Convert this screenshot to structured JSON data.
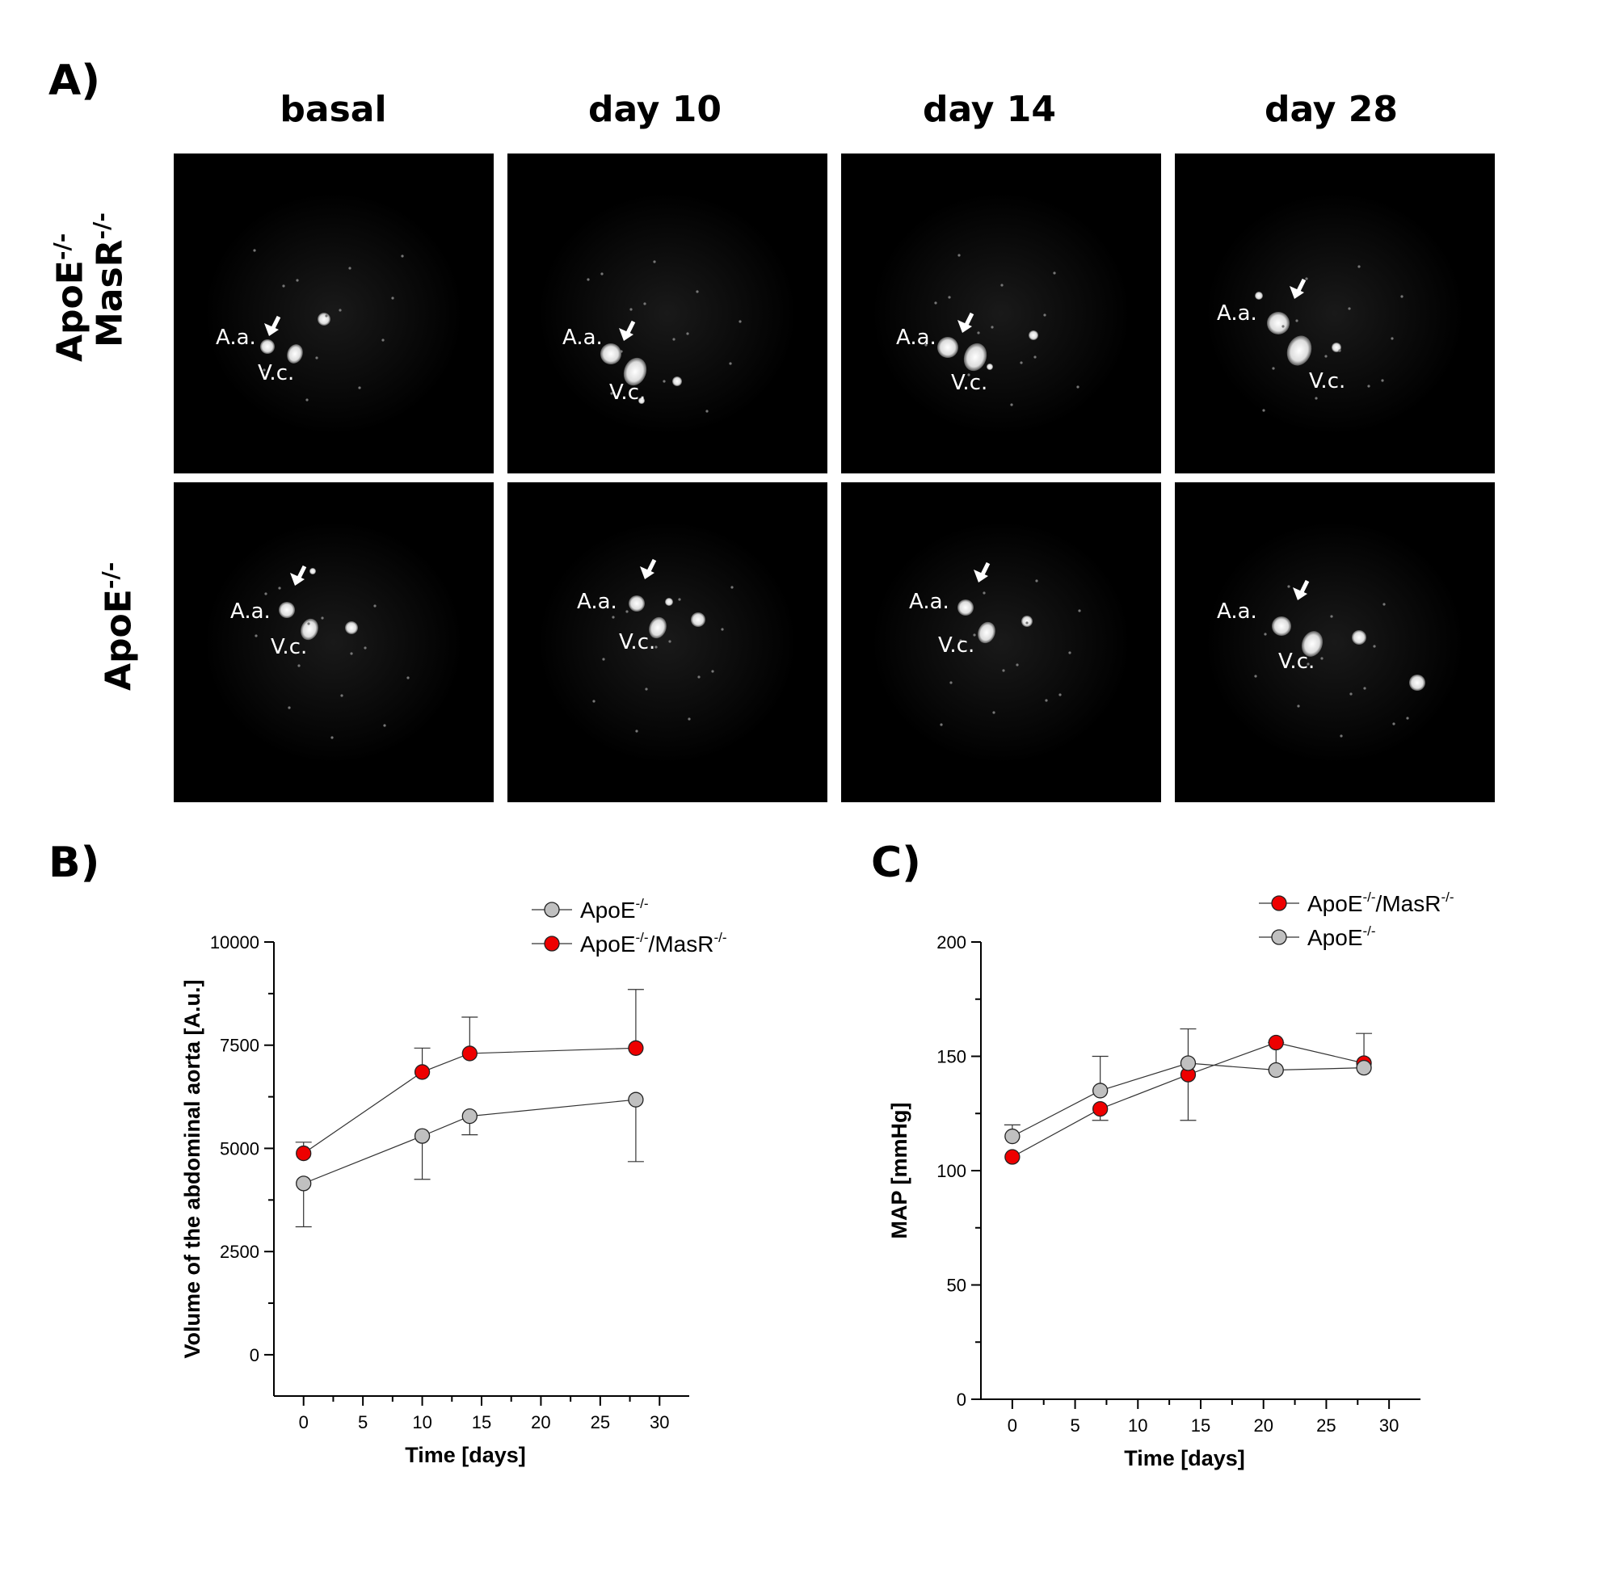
{
  "panels": {
    "a": "A)",
    "b": "B)",
    "c": "C)"
  },
  "mri": {
    "columns": [
      "basal",
      "day 10",
      "day 14",
      "day 28"
    ],
    "rows": [
      {
        "label_line1": "ApoE",
        "label_line1_sup": "-/-",
        "label_line2": "MasR",
        "label_line2_sup": "-/-"
      },
      {
        "label_line1": "ApoE",
        "label_line1_sup": "-/-"
      }
    ],
    "aa_label": "A.a.",
    "vc_label": "V.c."
  },
  "chart_data": [
    {
      "type": "scatter",
      "title": "",
      "xlabel": "Time [days]",
      "ylabel": "Volume of the abdominal aorta [A.u.]",
      "xlim": [
        -2.5,
        32.5
      ],
      "ylim": [
        -1000,
        10000
      ],
      "xticks": [
        0,
        5,
        10,
        15,
        20,
        25,
        30
      ],
      "yticks": [
        0,
        2500,
        5000,
        7500,
        10000
      ],
      "legend_position": "top-right",
      "series": [
        {
          "name": "ApoE",
          "name_sup": "-/-",
          "color": "#c0c0c0",
          "x": [
            0,
            10,
            14,
            28
          ],
          "y": [
            4150,
            5300,
            5780,
            6180
          ],
          "err_low": [
            1050,
            1050,
            450,
            1500
          ],
          "err_high": [
            0,
            0,
            0,
            0
          ]
        },
        {
          "name": "ApoE",
          "name_sup": "-/-",
          "name_suffix": "/MasR",
          "name_suffix_sup": "-/-",
          "color": "#ee0000",
          "x": [
            0,
            10,
            14,
            28
          ],
          "y": [
            4880,
            6850,
            7300,
            7430
          ],
          "err_low": [
            0,
            0,
            0,
            0
          ],
          "err_high": [
            270,
            580,
            880,
            1420
          ]
        }
      ]
    },
    {
      "type": "scatter",
      "title": "",
      "xlabel": "Time [days]",
      "ylabel": "MAP [mmHg]",
      "xlim": [
        -2.5,
        32.5
      ],
      "ylim": [
        0,
        200
      ],
      "xticks": [
        0,
        5,
        10,
        15,
        20,
        25,
        30
      ],
      "yticks": [
        0,
        50,
        100,
        150,
        200
      ],
      "legend_position": "top-right",
      "series": [
        {
          "name": "ApoE",
          "name_sup": "-/-",
          "name_suffix": "/MasR",
          "name_suffix_sup": "-/-",
          "color": "#ee0000",
          "x": [
            0,
            7,
            14,
            21,
            28
          ],
          "y": [
            106,
            127,
            142,
            156,
            147
          ],
          "err_low": [
            0,
            5,
            20,
            0,
            0
          ],
          "err_high": [
            0,
            0,
            0,
            0,
            0
          ]
        },
        {
          "name": "ApoE",
          "name_sup": "-/-",
          "color": "#c0c0c0",
          "x": [
            0,
            7,
            14,
            21,
            28
          ],
          "y": [
            115,
            135,
            147,
            144,
            145
          ],
          "err_low": [
            0,
            0,
            0,
            0,
            0
          ],
          "err_high": [
            5,
            15,
            15,
            12,
            15
          ]
        }
      ]
    }
  ]
}
